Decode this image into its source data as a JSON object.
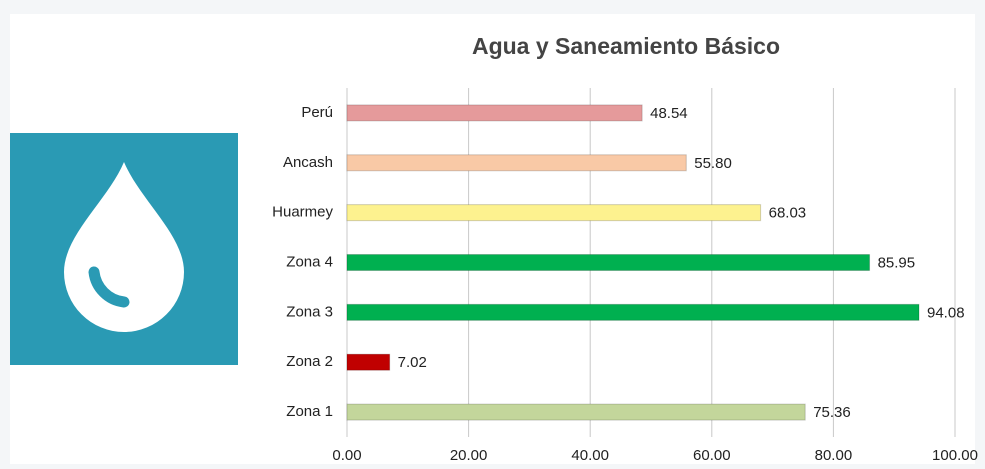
{
  "chart_data": {
    "type": "bar",
    "orientation": "horizontal",
    "title": "Agua y Saneamiento Básico",
    "categories": [
      "Perú",
      "Ancash",
      "Huarmey",
      "Zona 4",
      "Zona 3",
      "Zona 2",
      "Zona 1"
    ],
    "values": [
      48.54,
      55.8,
      68.03,
      85.95,
      94.08,
      7.02,
      75.36
    ],
    "value_labels": [
      "48.54",
      "55.80",
      "68.03",
      "85.95",
      "94.08",
      "7.02",
      "75.36"
    ],
    "colors": [
      "#e59a9b",
      "#f9c9a6",
      "#fdf28f",
      "#00b050",
      "#00b050",
      "#c00000",
      "#c3d69b"
    ],
    "xlim": [
      0,
      100
    ],
    "xticks": [
      {
        "value": 0,
        "label": "0.00"
      },
      {
        "value": 20,
        "label": "20.00"
      },
      {
        "value": 40,
        "label": "40.00"
      },
      {
        "value": 60,
        "label": "60.00"
      },
      {
        "value": 80,
        "label": "80.00"
      },
      {
        "value": 100,
        "label": "100.00"
      }
    ],
    "grid": true
  }
}
